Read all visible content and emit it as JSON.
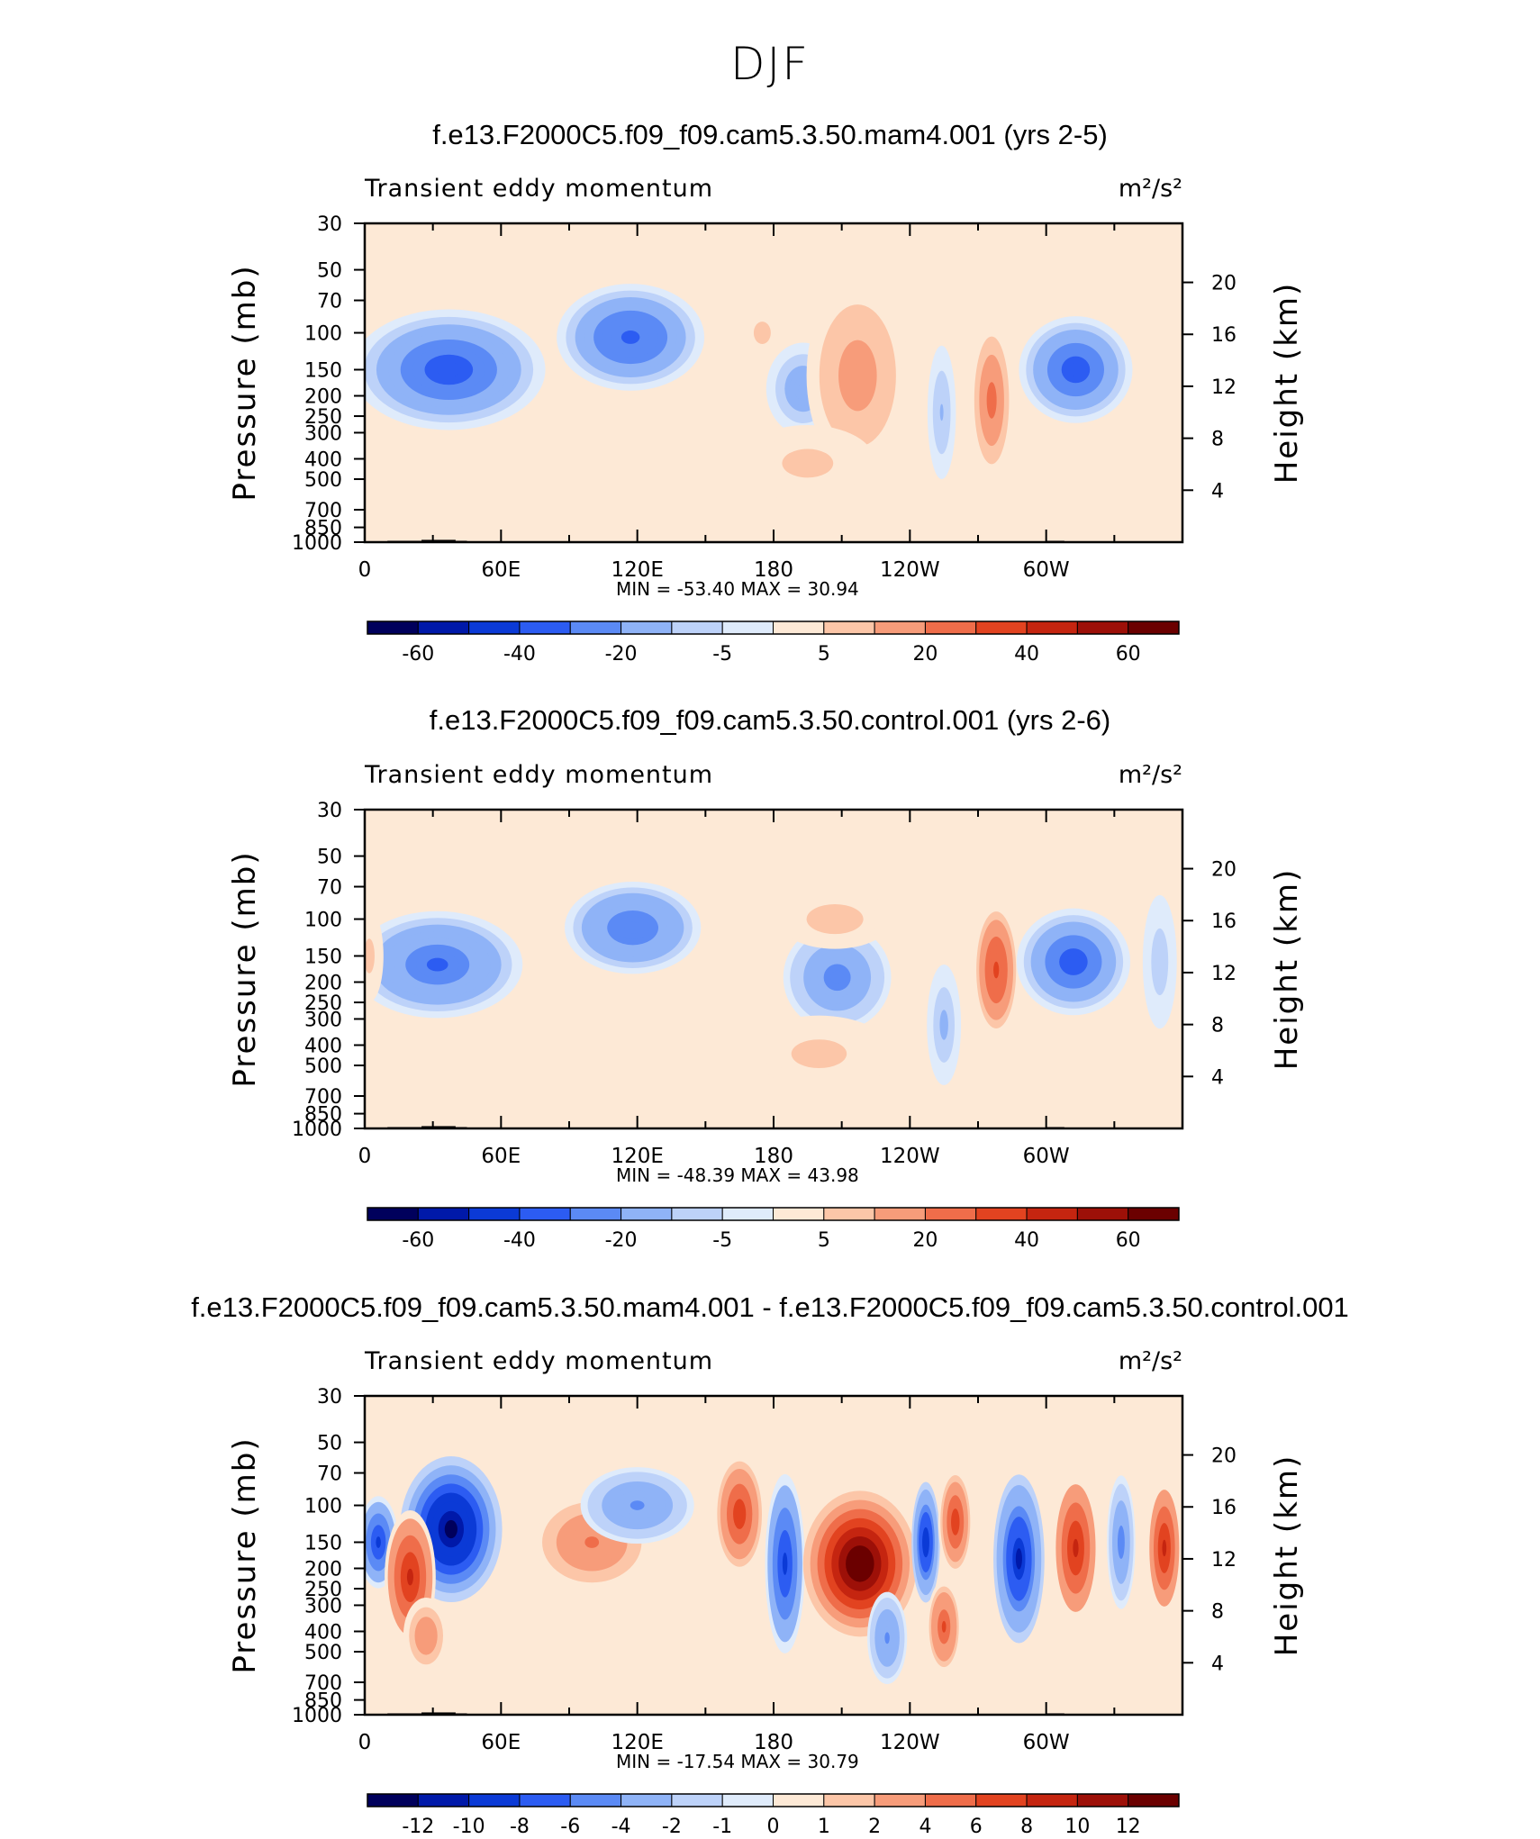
{
  "figure": {
    "title": "DJF"
  },
  "colors": {
    "levels": [
      "#00005c",
      "#0019a9",
      "#0b3ad6",
      "#2c5cf2",
      "#5b8af5",
      "#8fb3f7",
      "#bdd2f9",
      "#dfebfb",
      "#fde9d6",
      "#fcc6a8",
      "#f79c7a",
      "#ef6d4a",
      "#e24320",
      "#c52510",
      "#9d1008",
      "#6b0000"
    ]
  },
  "chart_data": [
    {
      "type": "heatmap",
      "title": "f.e13.F2000C5.f09_f09.cam5.3.50.mam4.001 (yrs 2-5)",
      "subtitle": "Transient eddy momentum",
      "units": "m²/s²",
      "ylabel": "Pressure (mb)",
      "y2label": "Height (km)",
      "xticks": [
        "0",
        "60E",
        "120E",
        "180",
        "120W",
        "60W"
      ],
      "yticks": [
        "30",
        "50",
        "70",
        "100",
        "150",
        "200",
        "250",
        "300",
        "400",
        "500",
        "700",
        "850",
        "1000"
      ],
      "y2ticks": [
        "20",
        "16",
        "12",
        "8",
        "4"
      ],
      "stats": {
        "min": "-53.40",
        "max": "30.94"
      },
      "colorbar_labels": [
        "-60",
        "-40",
        "-20",
        "-5",
        "5",
        "20",
        "40",
        "60"
      ],
      "blobs": [
        {
          "lon": 37,
          "p": 150,
          "v": -45,
          "rx": 34,
          "ry": 1.7
        },
        {
          "lon": 117,
          "p": 105,
          "v": -38,
          "rx": 26,
          "ry": 1.6
        },
        {
          "lon": 193,
          "p": 185,
          "v": -20,
          "rx": 13,
          "ry": 1.5
        },
        {
          "lon": 217,
          "p": 160,
          "v": 18,
          "rx": 18,
          "ry": 2.3
        },
        {
          "lon": 276,
          "p": 210,
          "v": 28,
          "rx": 7,
          "ry": 1.9
        },
        {
          "lon": 313,
          "p": 150,
          "v": -45,
          "rx": 20,
          "ry": 1.6
        },
        {
          "lon": 175,
          "p": 100,
          "v": 8,
          "rx": 8,
          "ry": 1.3
        },
        {
          "lon": 195,
          "p": 420,
          "v": 8,
          "rx": 24,
          "ry": 1.4
        },
        {
          "lon": 254,
          "p": 240,
          "v": -12,
          "rx": 5,
          "ry": 1.8
        }
      ]
    },
    {
      "type": "heatmap",
      "title": "f.e13.F2000C5.f09_f09.cam5.3.50.control.001 (yrs 2-6)",
      "subtitle": "Transient eddy momentum",
      "units": "m²/s²",
      "ylabel": "Pressure (mb)",
      "y2label": "Height (km)",
      "xticks": [
        "0",
        "60E",
        "120E",
        "180",
        "120W",
        "60W"
      ],
      "yticks": [
        "30",
        "50",
        "70",
        "100",
        "150",
        "200",
        "250",
        "300",
        "400",
        "500",
        "700",
        "850",
        "1000"
      ],
      "y2ticks": [
        "20",
        "16",
        "12",
        "8",
        "4"
      ],
      "stats": {
        "min": "-48.39",
        "max": "43.98"
      },
      "colorbar_labels": [
        "-60",
        "-40",
        "-20",
        "-5",
        "5",
        "20",
        "40",
        "60"
      ],
      "blobs": [
        {
          "lon": 32,
          "p": 165,
          "v": -35,
          "rx": 30,
          "ry": 1.6
        },
        {
          "lon": 118,
          "p": 110,
          "v": -32,
          "rx": 24,
          "ry": 1.5
        },
        {
          "lon": 208,
          "p": 190,
          "v": -30,
          "rx": 19,
          "ry": 1.6
        },
        {
          "lon": 278,
          "p": 175,
          "v": 38,
          "rx": 8,
          "ry": 1.8
        },
        {
          "lon": 312,
          "p": 160,
          "v": -45,
          "rx": 20,
          "ry": 1.6
        },
        {
          "lon": 207,
          "p": 100,
          "v": 10,
          "rx": 20,
          "ry": 1.3
        },
        {
          "lon": 200,
          "p": 440,
          "v": 9,
          "rx": 26,
          "ry": 1.4
        },
        {
          "lon": 255,
          "p": 320,
          "v": -15,
          "rx": 6,
          "ry": 1.7
        },
        {
          "lon": 350,
          "p": 160,
          "v": -10,
          "rx": 6,
          "ry": 1.8
        },
        {
          "lon": 2,
          "p": 150,
          "v": 8,
          "rx": 5,
          "ry": 1.5
        }
      ]
    },
    {
      "type": "heatmap",
      "title": "f.e13.F2000C5.f09_f09.cam5.3.50.mam4.001 - f.e13.F2000C5.f09_f09.cam5.3.50.control.001",
      "subtitle": "Transient eddy momentum",
      "units": "m²/s²",
      "ylabel": "Pressure (mb)",
      "y2label": "Height (km)",
      "xticks": [
        "0",
        "60E",
        "120E",
        "180",
        "120W",
        "60W"
      ],
      "yticks": [
        "30",
        "50",
        "70",
        "100",
        "150",
        "200",
        "250",
        "300",
        "400",
        "500",
        "700",
        "850",
        "1000"
      ],
      "y2ticks": [
        "20",
        "16",
        "12",
        "8",
        "4"
      ],
      "stats": {
        "min": "-17.54",
        "max": "30.79"
      },
      "colorbar_labels": [
        "-12",
        "-10",
        "-8",
        "-6",
        "-4",
        "-2",
        "-1",
        "0",
        "1",
        "2",
        "4",
        "6",
        "8",
        "10",
        "12"
      ],
      "blobs": [
        {
          "lon": 6,
          "p": 150,
          "v": -10,
          "rx": 7,
          "ry": 1.5
        },
        {
          "lon": 38,
          "p": 130,
          "v": -15,
          "rx": 18,
          "ry": 1.9
        },
        {
          "lon": 20,
          "p": 220,
          "v": 10,
          "rx": 9,
          "ry": 1.8
        },
        {
          "lon": 100,
          "p": 150,
          "v": 5,
          "rx": 20,
          "ry": 1.5
        },
        {
          "lon": 120,
          "p": 100,
          "v": -5,
          "rx": 20,
          "ry": 1.4
        },
        {
          "lon": 165,
          "p": 110,
          "v": 9,
          "rx": 9,
          "ry": 1.7
        },
        {
          "lon": 185,
          "p": 190,
          "v": -10,
          "rx": 7,
          "ry": 2.2
        },
        {
          "lon": 218,
          "p": 190,
          "v": 16,
          "rx": 20,
          "ry": 1.9
        },
        {
          "lon": 247,
          "p": 150,
          "v": -11,
          "rx": 5,
          "ry": 1.7
        },
        {
          "lon": 260,
          "p": 120,
          "v": 8,
          "rx": 6,
          "ry": 1.6
        },
        {
          "lon": 288,
          "p": 180,
          "v": -12,
          "rx": 9,
          "ry": 2.1
        },
        {
          "lon": 313,
          "p": 160,
          "v": 10,
          "rx": 8,
          "ry": 1.9
        },
        {
          "lon": 333,
          "p": 150,
          "v": -6,
          "rx": 5,
          "ry": 1.8
        },
        {
          "lon": 352,
          "p": 160,
          "v": 10,
          "rx": 6,
          "ry": 1.8
        },
        {
          "lon": 255,
          "p": 380,
          "v": 7,
          "rx": 6,
          "ry": 1.5
        },
        {
          "lon": 230,
          "p": 430,
          "v": -5,
          "rx": 7,
          "ry": 1.5
        },
        {
          "lon": 27,
          "p": 420,
          "v": 4,
          "rx": 8,
          "ry": 1.4
        }
      ]
    }
  ]
}
